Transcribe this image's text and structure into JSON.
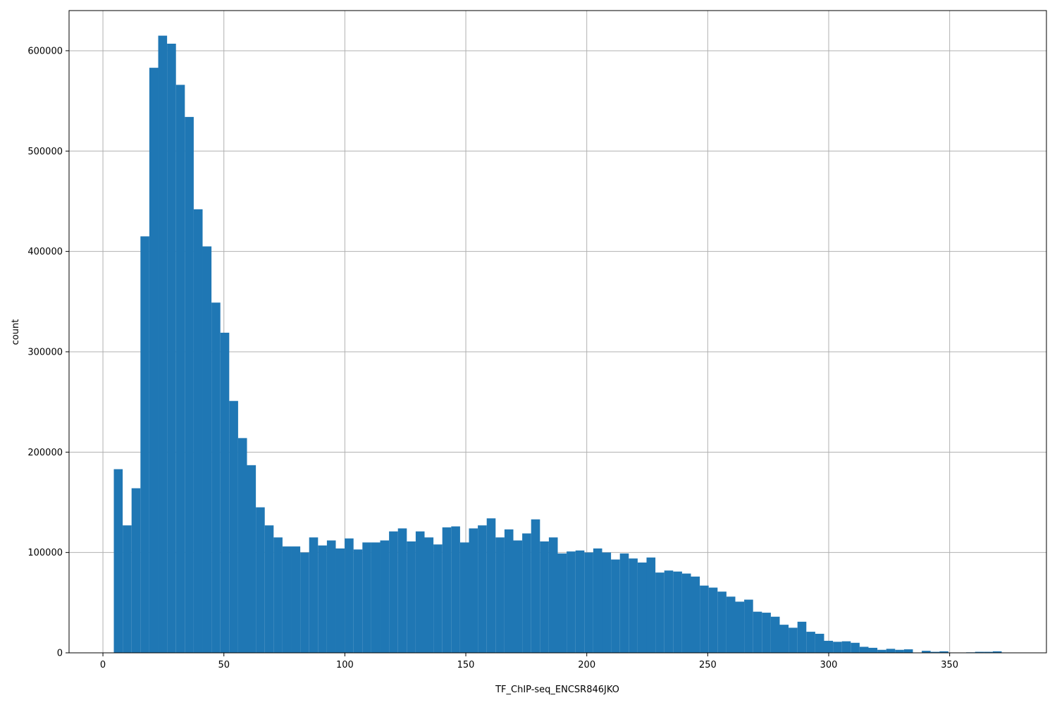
{
  "chart_data": {
    "type": "bar",
    "title": "",
    "xlabel": "TF_ChIP-seq_ENCSR846JKO",
    "ylabel": "count",
    "xlim": [
      -14,
      390
    ],
    "ylim": [
      0,
      640000
    ],
    "xticks": [
      0,
      50,
      100,
      150,
      200,
      250,
      300,
      350
    ],
    "yticks": [
      0,
      100000,
      200000,
      300000,
      400000,
      500000,
      600000
    ],
    "grid": true,
    "color": "#1f77b4",
    "bin_start": 4.5,
    "bin_width": 3.67,
    "values": [
      183000,
      127000,
      164000,
      415000,
      583000,
      615000,
      607000,
      566000,
      534000,
      442000,
      405000,
      349000,
      319000,
      251000,
      214000,
      187000,
      145000,
      127000,
      115000,
      106000,
      106000,
      100000,
      115000,
      107000,
      112000,
      104000,
      114000,
      103000,
      110000,
      110000,
      112000,
      121000,
      124000,
      111000,
      121000,
      115000,
      108000,
      125000,
      126000,
      110000,
      124000,
      127000,
      134000,
      115000,
      123000,
      112000,
      119000,
      133000,
      111000,
      115000,
      99000,
      101000,
      102000,
      100000,
      104000,
      100000,
      93000,
      99000,
      94000,
      90000,
      95000,
      80000,
      82000,
      81000,
      79000,
      76000,
      67000,
      65000,
      61000,
      56000,
      51000,
      53000,
      41000,
      40000,
      36000,
      28000,
      25000,
      31000,
      21000,
      19000,
      12000,
      11000,
      11500,
      10000,
      6000,
      5000,
      3000,
      4000,
      3000,
      3500,
      0,
      2000,
      1000,
      1500,
      0,
      0,
      500,
      1000,
      1000,
      1500
    ]
  }
}
